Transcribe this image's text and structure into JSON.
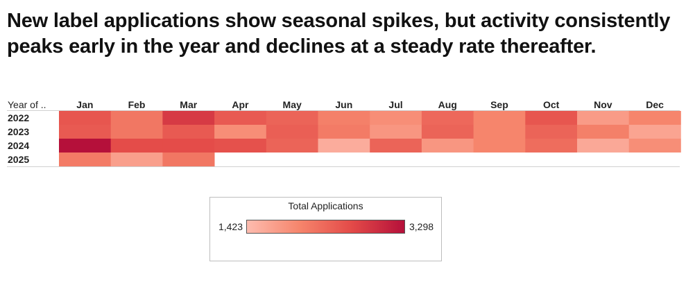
{
  "title": "New label applications show seasonal spikes, but activity consistently peaks early in the year and declines at a steady rate thereafter.",
  "chart_data": {
    "type": "heatmap",
    "title": "New label applications show seasonal spikes, but activity consistently peaks early in the year and declines at a steady rate thereafter.",
    "row_header": "Year of ..",
    "columns": [
      "Jan",
      "Feb",
      "Mar",
      "Apr",
      "May",
      "Jun",
      "Jul",
      "Aug",
      "Sep",
      "Oct",
      "Nov",
      "Dec"
    ],
    "rows": [
      {
        "label": "2022",
        "values": [
          2550,
          2200,
          2850,
          2500,
          2400,
          2100,
          1950,
          2350,
          2050,
          2550,
          1800,
          2050
        ]
      },
      {
        "label": "2023",
        "values": [
          2500,
          2200,
          2500,
          1950,
          2450,
          2150,
          1850,
          2400,
          2050,
          2400,
          2100,
          1700
        ]
      },
      {
        "label": "2024",
        "values": [
          3298,
          2650,
          2650,
          2600,
          2400,
          1600,
          2400,
          1850,
          2050,
          2300,
          1650,
          1950
        ]
      },
      {
        "label": "2025",
        "values": [
          2150,
          1750,
          2200,
          null,
          null,
          null,
          null,
          null,
          null,
          null,
          null,
          null
        ]
      }
    ],
    "legend": {
      "title": "Total Applications",
      "min": 1423,
      "max": 3298,
      "min_label": "1,423",
      "max_label": "3,298"
    },
    "color_scale": [
      "#fdbcaf",
      "#f6856c",
      "#e34a48",
      "#b5103a"
    ]
  }
}
